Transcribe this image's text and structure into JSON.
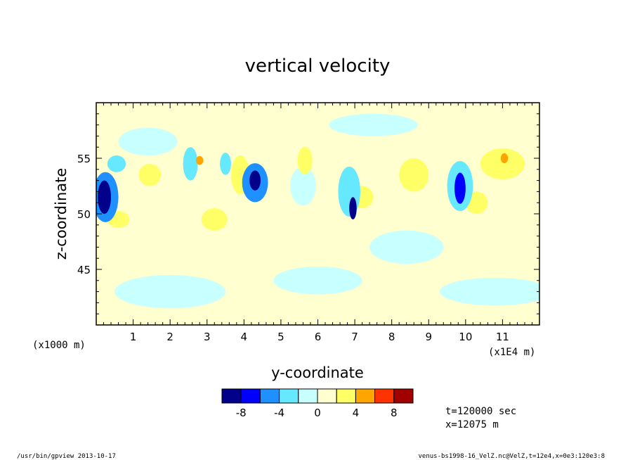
{
  "chart_data": {
    "type": "heatmap",
    "title": "vertical velocity",
    "xlabel": "y-coordinate",
    "ylabel": "z-coordinate",
    "x_units_label": "(x1000 m)",
    "x_scale_label": "(x1E4 m)",
    "xlim": [
      0,
      12
    ],
    "ylim": [
      40,
      60
    ],
    "x_ticks": [
      1,
      2,
      3,
      4,
      5,
      6,
      7,
      8,
      9,
      10,
      11
    ],
    "x_tick_labels": [
      "1",
      "2",
      "3",
      "4",
      "5",
      "6",
      "7",
      "8",
      "9",
      "10",
      "11"
    ],
    "y_ticks": [
      45,
      50,
      55
    ],
    "y_tick_labels": [
      "45",
      "50",
      "55"
    ],
    "colorbar": {
      "levels": [
        -10,
        -8,
        -6,
        -4,
        -2,
        0,
        2,
        4,
        6,
        8,
        10
      ],
      "colors": [
        "#00008b",
        "#0000ff",
        "#1e90ff",
        "#66e8ff",
        "#c8ffff",
        "#ffffd0",
        "#ffff66",
        "#ffa500",
        "#ff3300",
        "#a00000"
      ],
      "tick_labels": [
        "-8",
        "-4",
        "0",
        "4",
        "8"
      ],
      "tick_values": [
        -8,
        -4,
        0,
        4,
        8
      ]
    },
    "features": [
      {
        "y": 0.22,
        "z": 51.5,
        "w": 0.18,
        "h": 3.0,
        "v": -9
      },
      {
        "y": 0.25,
        "z": 51.5,
        "w": 0.35,
        "h": 4.5,
        "v": -5
      },
      {
        "y": 4.3,
        "z": 53.0,
        "w": 0.15,
        "h": 1.8,
        "v": -9
      },
      {
        "y": 4.3,
        "z": 52.8,
        "w": 0.35,
        "h": 3.5,
        "v": -5
      },
      {
        "y": 6.95,
        "z": 50.5,
        "w": 0.1,
        "h": 2.0,
        "v": -9
      },
      {
        "y": 6.85,
        "z": 52.0,
        "w": 0.3,
        "h": 4.5,
        "v": -4
      },
      {
        "y": 9.85,
        "z": 52.3,
        "w": 0.15,
        "h": 2.8,
        "v": -8
      },
      {
        "y": 9.85,
        "z": 52.5,
        "w": 0.35,
        "h": 4.5,
        "v": -4
      },
      {
        "y": 2.55,
        "z": 54.5,
        "w": 0.2,
        "h": 3.0,
        "v": -4
      },
      {
        "y": 3.5,
        "z": 54.5,
        "w": 0.15,
        "h": 2.0,
        "v": -4
      },
      {
        "y": 0.55,
        "z": 54.5,
        "w": 0.25,
        "h": 1.5,
        "v": -3
      },
      {
        "y": 5.6,
        "z": 52.5,
        "w": 0.35,
        "h": 3.5,
        "v": -2
      },
      {
        "y": 8.4,
        "z": 47.0,
        "w": 1.0,
        "h": 3.0,
        "v": -2
      },
      {
        "y": 2.0,
        "z": 43.0,
        "w": 1.5,
        "h": 3.0,
        "v": -2
      },
      {
        "y": 10.8,
        "z": 43.0,
        "w": 1.5,
        "h": 2.5,
        "v": -2
      },
      {
        "y": 6.0,
        "z": 44.0,
        "w": 1.2,
        "h": 2.5,
        "v": -1.5
      },
      {
        "y": 1.4,
        "z": 56.5,
        "w": 0.8,
        "h": 2.5,
        "v": -2
      },
      {
        "y": 7.5,
        "z": 58.0,
        "w": 1.2,
        "h": 2.0,
        "v": -1.5
      },
      {
        "y": 3.9,
        "z": 53.5,
        "w": 0.25,
        "h": 3.5,
        "v": 3
      },
      {
        "y": 2.8,
        "z": 54.8,
        "w": 0.1,
        "h": 0.8,
        "v": 5
      },
      {
        "y": 11.0,
        "z": 54.5,
        "w": 0.6,
        "h": 2.8,
        "v": 3
      },
      {
        "y": 11.05,
        "z": 55.0,
        "w": 0.1,
        "h": 0.9,
        "v": 5
      },
      {
        "y": 1.45,
        "z": 53.5,
        "w": 0.3,
        "h": 2.0,
        "v": 2.5
      },
      {
        "y": 0.6,
        "z": 49.5,
        "w": 0.3,
        "h": 1.5,
        "v": 2.5
      },
      {
        "y": 5.65,
        "z": 54.8,
        "w": 0.2,
        "h": 2.5,
        "v": 2.5
      },
      {
        "y": 8.6,
        "z": 53.5,
        "w": 0.4,
        "h": 3.0,
        "v": 2.2
      },
      {
        "y": 7.2,
        "z": 51.5,
        "w": 0.3,
        "h": 2.0,
        "v": 2.2
      },
      {
        "y": 3.2,
        "z": 49.5,
        "w": 0.35,
        "h": 2.0,
        "v": 2.2
      },
      {
        "y": 10.3,
        "z": 51.0,
        "w": 0.3,
        "h": 2.0,
        "v": 2.2
      }
    ]
  },
  "info": {
    "time_label": "t=120000 sec",
    "x_label": "x=12075 m"
  },
  "footer": {
    "left": "/usr/bin/gpview  2013-10-17",
    "right": "venus-bs1998-16_VelZ.nc@VelZ,t=12e4,x=0e3:120e3:8"
  }
}
